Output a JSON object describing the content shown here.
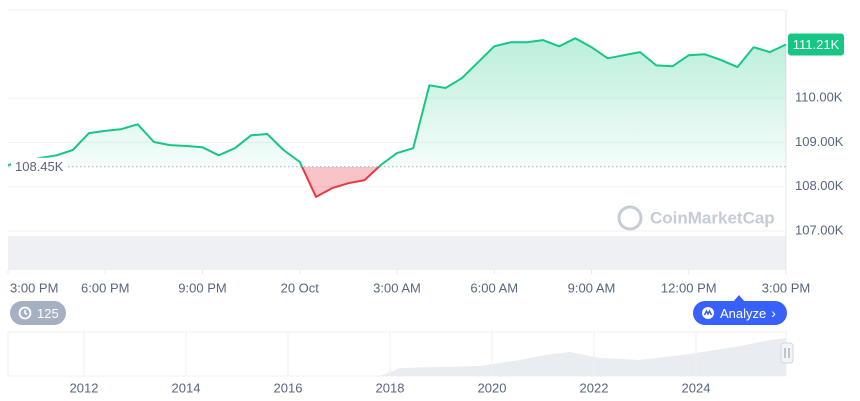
{
  "chart_data": {
    "type": "line",
    "x": [
      0,
      0.5,
      1,
      1.5,
      2,
      2.5,
      3,
      3.5,
      4,
      4.5,
      5,
      5.5,
      6,
      6.5,
      7,
      7.5,
      8,
      8.5,
      9,
      9.5,
      10,
      10.5,
      11,
      11.5,
      12,
      12.5,
      13,
      13.5,
      14,
      14.5,
      15,
      15.5,
      16,
      16.5,
      17,
      17.5,
      18,
      18.5,
      19,
      19.5,
      20,
      20.5,
      21,
      21.5,
      22,
      22.5,
      23,
      23.5,
      24
    ],
    "values": [
      108.49,
      108.56,
      108.65,
      108.71,
      108.83,
      109.21,
      109.26,
      109.3,
      109.41,
      109.01,
      108.94,
      108.92,
      108.89,
      108.71,
      108.87,
      109.16,
      109.19,
      108.83,
      108.56,
      107.77,
      107.97,
      108.08,
      108.15,
      108.49,
      108.76,
      108.87,
      110.29,
      110.23,
      110.45,
      110.81,
      111.17,
      111.26,
      111.26,
      111.31,
      111.17,
      111.35,
      111.15,
      110.9,
      110.97,
      111.04,
      110.74,
      110.72,
      110.97,
      110.99,
      110.86,
      110.7,
      111.15,
      111.04,
      111.21
    ],
    "color": "#16c784",
    "down_color": "#ea3943",
    "xlim": [
      0,
      24
    ],
    "xticks": [
      {
        "value": 0,
        "label": "3:00 PM"
      },
      {
        "value": 3,
        "label": "6:00 PM"
      },
      {
        "value": 6,
        "label": "9:00 PM"
      },
      {
        "value": 9,
        "label": "20 Oct"
      },
      {
        "value": 12,
        "label": "3:00 AM"
      },
      {
        "value": 15,
        "label": "6:00 AM"
      },
      {
        "value": 18,
        "label": "9:00 AM"
      },
      {
        "value": 21,
        "label": "12:00 PM"
      },
      {
        "value": 24,
        "label": "3:00 PM"
      }
    ],
    "ylim": [
      106.12,
      111.99
    ],
    "yticks": [
      {
        "value": 107,
        "label": "107.00K"
      },
      {
        "value": 108,
        "label": "108.00K"
      },
      {
        "value": 109,
        "label": "109.00K"
      },
      {
        "value": 110,
        "label": "110.00K"
      }
    ],
    "grid": true,
    "baseline": {
      "value": 108.45,
      "label": "108.45K"
    },
    "current_price": {
      "value": 111.21,
      "label": "111.21K"
    },
    "watermark": "CoinMarketCap"
  },
  "controls": {
    "history_count": "125",
    "analyze": "Analyze"
  },
  "navigator": {
    "years": [
      "2012",
      "2014",
      "2016",
      "2018",
      "2020",
      "2022",
      "2024"
    ]
  }
}
